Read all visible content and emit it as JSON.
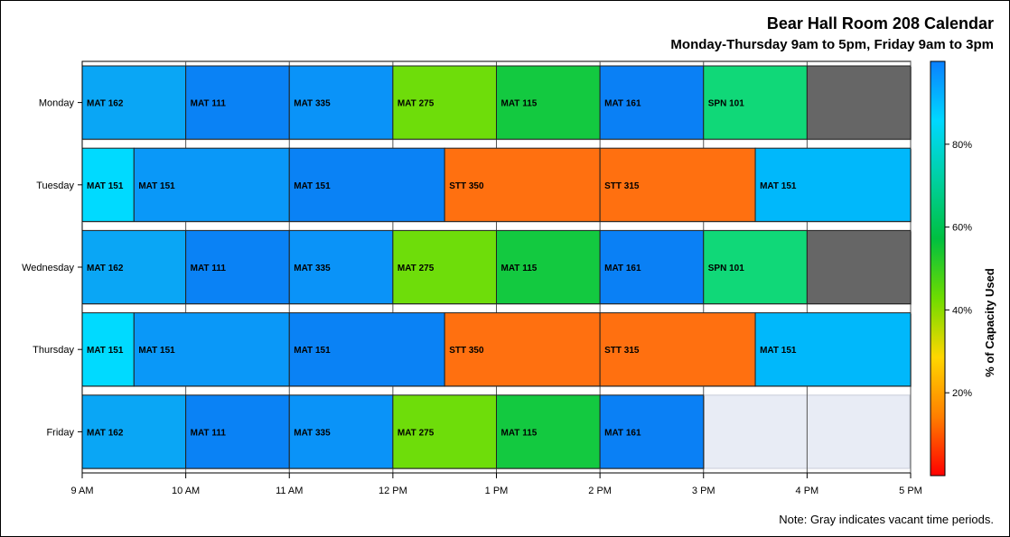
{
  "title": "Bear Hall Room 208 Calendar",
  "subtitle": "Monday-Thursday 9am to 5pm, Friday 9am to 3pm",
  "note": "Note: Gray indicates vacant time periods.",
  "chart_data": {
    "type": "bar",
    "orientation": "horizontal-timeline",
    "days": [
      "Monday",
      "Tuesday",
      "Wednesday",
      "Thursday",
      "Friday"
    ],
    "x_ticks": [
      "9 AM",
      "10 AM",
      "11 AM",
      "12 PM",
      "1 PM",
      "2 PM",
      "3 PM",
      "4 PM",
      "5 PM"
    ],
    "x_range_hours": [
      9,
      17
    ],
    "grid": true,
    "colorbar": {
      "label": "% of Capacity Used",
      "ticks": [
        "20%",
        "40%",
        "60%",
        "80%"
      ],
      "tick_values": [
        20,
        40,
        60,
        80
      ],
      "range": [
        0,
        100
      ],
      "stops": [
        "#ff0000",
        "#ff7f00",
        "#ffd700",
        "#6edc00",
        "#00c040",
        "#00d0a0",
        "#00d8ff",
        "#0a80ff"
      ],
      "position": "right"
    },
    "vacant_color": "#666666",
    "closed_color": "#e8ecf5",
    "day_bg_color": "#e8ecf5",
    "schedule": [
      {
        "day": "Monday",
        "blocks": [
          {
            "label": "MAT 162",
            "start": 9,
            "end": 10,
            "color": "#0aa6f5"
          },
          {
            "label": "MAT 111",
            "start": 10,
            "end": 11,
            "color": "#0a82f5"
          },
          {
            "label": "MAT 335",
            "start": 11,
            "end": 12,
            "color": "#0a93f8"
          },
          {
            "label": "MAT 275",
            "start": 12,
            "end": 13,
            "color": "#6edd0a"
          },
          {
            "label": "MAT 115",
            "start": 13,
            "end": 14,
            "color": "#13c940"
          },
          {
            "label": "MAT 161",
            "start": 14,
            "end": 15,
            "color": "#0a80f5"
          },
          {
            "label": "SPN 101",
            "start": 15,
            "end": 16,
            "color": "#10d878"
          },
          {
            "label": "",
            "start": 16,
            "end": 17,
            "color": "#666666"
          }
        ]
      },
      {
        "day": "Tuesday",
        "blocks": [
          {
            "label": "MAT 151",
            "start": 9,
            "end": 9.5,
            "color": "#00daff"
          },
          {
            "label": "MAT 151",
            "start": 9.5,
            "end": 11,
            "color": "#0a98f8"
          },
          {
            "label": "MAT 151",
            "start": 11,
            "end": 12.5,
            "color": "#0a82f5"
          },
          {
            "label": "STT 350",
            "start": 12.5,
            "end": 14,
            "color": "#ff7010"
          },
          {
            "label": "STT 315",
            "start": 14,
            "end": 15.5,
            "color": "#ff7010"
          },
          {
            "label": "MAT 151",
            "start": 15.5,
            "end": 17,
            "color": "#00b8fb"
          }
        ]
      },
      {
        "day": "Wednesday",
        "blocks": [
          {
            "label": "MAT 162",
            "start": 9,
            "end": 10,
            "color": "#0aa6f5"
          },
          {
            "label": "MAT 111",
            "start": 10,
            "end": 11,
            "color": "#0a82f5"
          },
          {
            "label": "MAT 335",
            "start": 11,
            "end": 12,
            "color": "#0a93f8"
          },
          {
            "label": "MAT 275",
            "start": 12,
            "end": 13,
            "color": "#6edd0a"
          },
          {
            "label": "MAT 115",
            "start": 13,
            "end": 14,
            "color": "#13c940"
          },
          {
            "label": "MAT 161",
            "start": 14,
            "end": 15,
            "color": "#0a80f5"
          },
          {
            "label": "SPN 101",
            "start": 15,
            "end": 16,
            "color": "#10d878"
          },
          {
            "label": "",
            "start": 16,
            "end": 17,
            "color": "#666666"
          }
        ]
      },
      {
        "day": "Thursday",
        "blocks": [
          {
            "label": "MAT 151",
            "start": 9,
            "end": 9.5,
            "color": "#00daff"
          },
          {
            "label": "MAT 151",
            "start": 9.5,
            "end": 11,
            "color": "#0a98f8"
          },
          {
            "label": "MAT 151",
            "start": 11,
            "end": 12.5,
            "color": "#0a82f5"
          },
          {
            "label": "STT 350",
            "start": 12.5,
            "end": 14,
            "color": "#ff7010"
          },
          {
            "label": "STT 315",
            "start": 14,
            "end": 15.5,
            "color": "#ff7010"
          },
          {
            "label": "MAT 151",
            "start": 15.5,
            "end": 17,
            "color": "#00b8fb"
          }
        ]
      },
      {
        "day": "Friday",
        "blocks": [
          {
            "label": "MAT 162",
            "start": 9,
            "end": 10,
            "color": "#0aa6f5"
          },
          {
            "label": "MAT 111",
            "start": 10,
            "end": 11,
            "color": "#0a82f5"
          },
          {
            "label": "MAT 335",
            "start": 11,
            "end": 12,
            "color": "#0a93f8"
          },
          {
            "label": "MAT 275",
            "start": 12,
            "end": 13,
            "color": "#6edd0a"
          },
          {
            "label": "MAT 115",
            "start": 13,
            "end": 14,
            "color": "#13c940"
          },
          {
            "label": "MAT 161",
            "start": 14,
            "end": 15,
            "color": "#0a80f5"
          }
        ]
      }
    ]
  }
}
